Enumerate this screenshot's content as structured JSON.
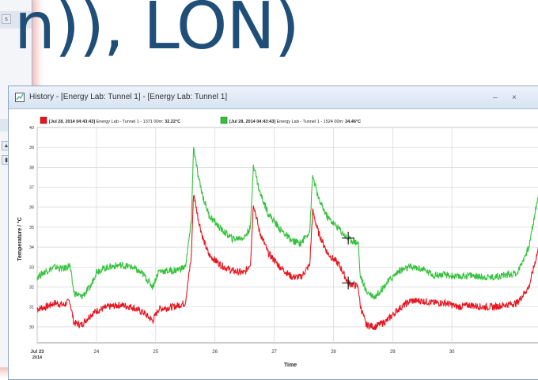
{
  "slide": {
    "title": "n)), LON)"
  },
  "window": {
    "title": "History - [Energy Lab: Tunnel 1] - [Energy Lab: Tunnel 1]",
    "controls": {
      "minimize": "–",
      "close": "×"
    },
    "background_panel": {
      "label": "s"
    }
  },
  "colors": {
    "red_series": "#e8141e",
    "green_series": "#34c23c",
    "title_text": "#1f4e79"
  },
  "chart_data": {
    "type": "line",
    "title": "",
    "xlabel": "Time",
    "ylabel": "Temperature / °C",
    "xlim": [
      23,
      31.6
    ],
    "ylim": [
      29.2,
      40
    ],
    "yticks": [
      30,
      31,
      32,
      33,
      34,
      35,
      36,
      37,
      38,
      39,
      40
    ],
    "xticks": [
      {
        "value": 23,
        "label": "Jul 23",
        "sublabel": "2014"
      },
      {
        "value": 24,
        "label": "24"
      },
      {
        "value": 25,
        "label": "25"
      },
      {
        "value": 26,
        "label": "26"
      },
      {
        "value": 27,
        "label": "27"
      },
      {
        "value": 28,
        "label": "28"
      },
      {
        "value": 29,
        "label": "29"
      },
      {
        "value": 30,
        "label": "30"
      }
    ],
    "grid": true,
    "legend_position": "top",
    "legend": [
      {
        "date": "[Jul 28, 2014 04:43:43]",
        "text": "Energy Lab - Tunnel 1 - 1371 00m:",
        "value": "32.22°C"
      },
      {
        "date": "[Jul 28, 2014 04:43:43]",
        "text": "Energy Lab - Tunnel 1 - 1524 00m:",
        "value": "34.46°C"
      }
    ],
    "cursor": {
      "x": 28.25,
      "y_values": [
        32.2,
        34.45
      ]
    },
    "series": [
      {
        "x": [
          23.0,
          23.15,
          23.3,
          23.45,
          23.55,
          23.62,
          23.75,
          23.9,
          24.0,
          24.2,
          24.4,
          24.6,
          24.8,
          24.95,
          25.05,
          25.3,
          25.5,
          25.6,
          25.64,
          25.72,
          25.8,
          25.9,
          26.1,
          26.3,
          26.5,
          26.6,
          26.65,
          26.75,
          26.9,
          27.1,
          27.3,
          27.45,
          27.6,
          27.65,
          27.75,
          27.9,
          28.1,
          28.25,
          28.35,
          28.42,
          28.45,
          28.55,
          28.7,
          28.9,
          29.1,
          29.3,
          29.5,
          29.7,
          29.9,
          30.1,
          30.3,
          30.5,
          30.7,
          30.9,
          31.1,
          31.3,
          31.45,
          31.6
        ],
        "values": [
          30.9,
          31.0,
          31.2,
          31.1,
          31.3,
          30.2,
          30.1,
          30.6,
          30.8,
          31.0,
          31.1,
          31.0,
          30.7,
          30.3,
          30.9,
          31.0,
          31.2,
          33.5,
          36.7,
          35.4,
          34.4,
          33.6,
          33.1,
          32.8,
          32.7,
          33.2,
          36.2,
          34.8,
          33.7,
          33.0,
          32.5,
          32.5,
          33.1,
          35.8,
          34.7,
          33.7,
          33.1,
          32.2,
          32.1,
          32.0,
          31.1,
          30.1,
          30.0,
          30.3,
          30.9,
          31.3,
          31.3,
          31.2,
          31.2,
          31.0,
          31.1,
          31.0,
          31.0,
          31.1,
          31.2,
          32.0,
          33.8,
          35.7
        ]
      },
      {
        "x": [
          23.0,
          23.15,
          23.3,
          23.45,
          23.55,
          23.62,
          23.75,
          23.9,
          24.0,
          24.2,
          24.4,
          24.6,
          24.8,
          24.95,
          25.05,
          25.3,
          25.5,
          25.6,
          25.64,
          25.72,
          25.8,
          25.9,
          26.1,
          26.3,
          26.5,
          26.6,
          26.65,
          26.75,
          26.9,
          27.1,
          27.3,
          27.45,
          27.6,
          27.65,
          27.75,
          27.9,
          28.1,
          28.25,
          28.35,
          28.42,
          28.45,
          28.55,
          28.7,
          28.9,
          29.1,
          29.3,
          29.5,
          29.7,
          29.9,
          30.1,
          30.3,
          30.5,
          30.7,
          30.9,
          31.1,
          31.3,
          31.45,
          31.6
        ],
        "values": [
          32.5,
          32.8,
          33.0,
          32.9,
          33.1,
          31.7,
          31.5,
          32.0,
          32.8,
          33.0,
          33.1,
          33.0,
          32.6,
          32.0,
          32.8,
          32.8,
          33.0,
          35.2,
          39.0,
          37.5,
          36.5,
          35.6,
          34.9,
          34.4,
          34.5,
          35.0,
          38.2,
          36.8,
          35.7,
          34.9,
          34.3,
          34.2,
          34.8,
          37.6,
          36.4,
          35.5,
          34.9,
          34.4,
          34.3,
          34.2,
          32.6,
          31.8,
          31.5,
          32.2,
          32.8,
          33.0,
          32.9,
          32.6,
          32.6,
          32.5,
          32.6,
          32.5,
          32.5,
          32.6,
          32.7,
          34.0,
          36.5,
          38.7
        ]
      }
    ]
  }
}
